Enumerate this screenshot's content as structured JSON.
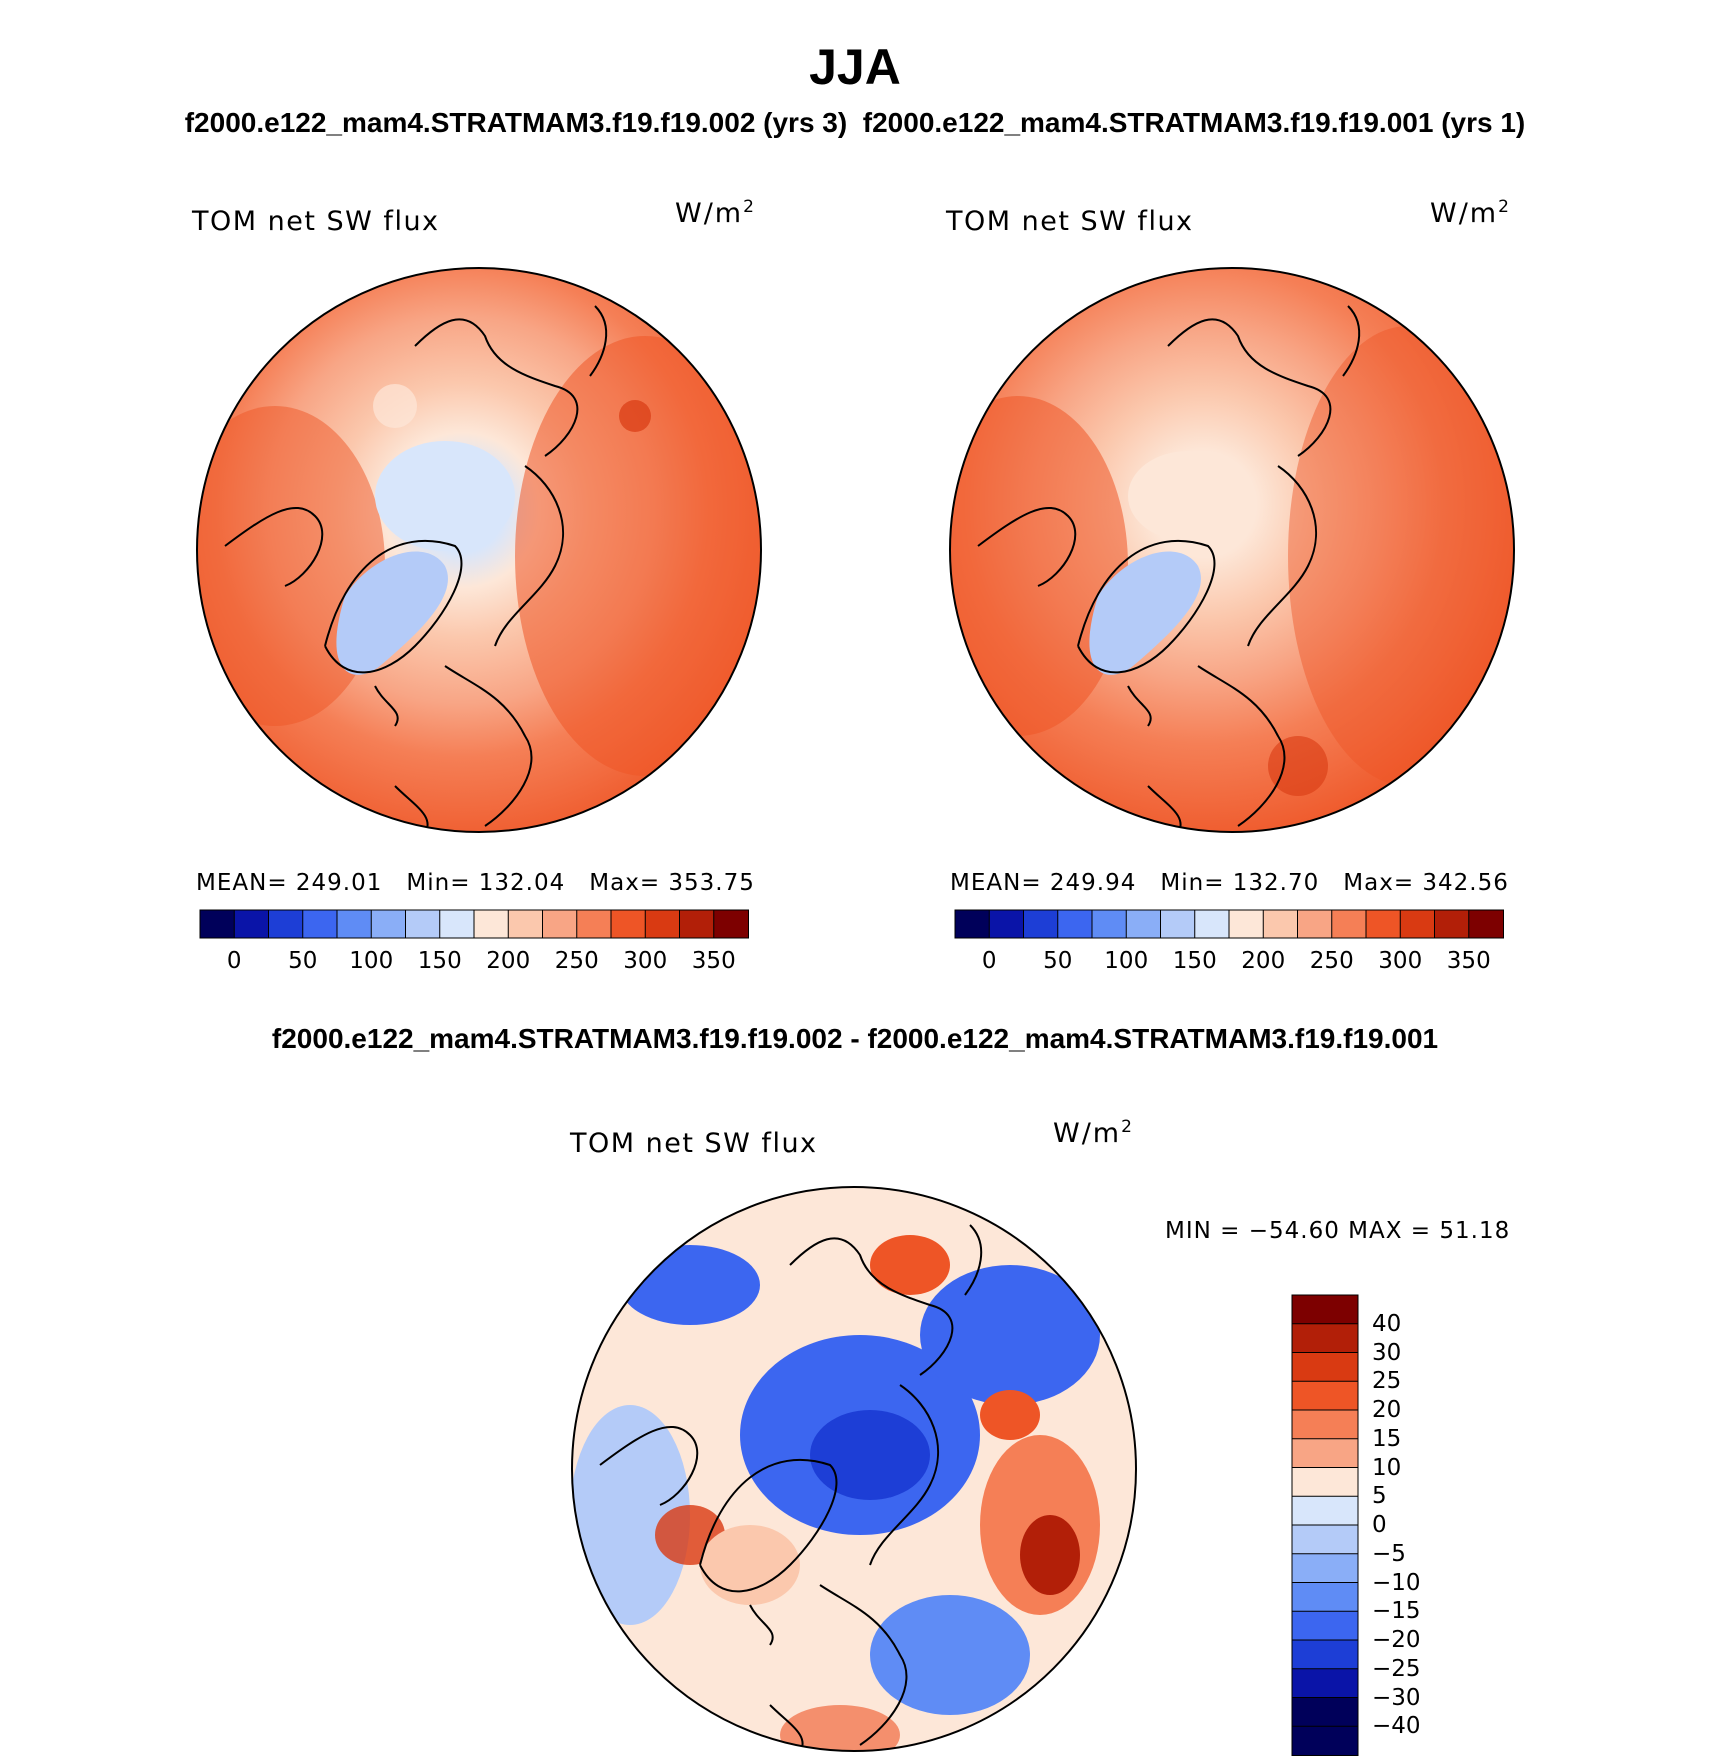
{
  "figure": {
    "season": "JJA",
    "top_subtitle_left": "f2000.e122_mam4.STRATMAM3.f19.f19.002 (yrs 3)",
    "top_subtitle_right": "f2000.e122_mam4.STRATMAM3.f19.f19.001 (yrs 1)",
    "diff_subtitle": "f2000.e122_mam4.STRATMAM3.f19.f19.002 - f2000.e122_mam4.STRATMAM3.f19.f19.001"
  },
  "panels": [
    {
      "variable": "TOM net SW flux",
      "units": "W/m",
      "units_sup": "2",
      "mean_label": "MEAN= 249.01",
      "min_label": "Min= 132.04",
      "max_label": "Max= 353.75"
    },
    {
      "variable": "TOM net SW flux",
      "units": "W/m",
      "units_sup": "2",
      "mean_label": "MEAN= 249.94",
      "min_label": "Min= 132.70",
      "max_label": "Max= 342.56"
    },
    {
      "variable": "TOM net SW flux",
      "units": "W/m",
      "units_sup": "2",
      "minmax_label": "MIN = −54.60 MAX =   51.18"
    }
  ],
  "abs_colorbar": {
    "colors": [
      "#00005a",
      "#0a14a8",
      "#1d3ed6",
      "#3c66f0",
      "#5f8cf5",
      "#8aaef7",
      "#b4cbf8",
      "#d8e6fb",
      "#fde7d8",
      "#fbc8ad",
      "#f8a585",
      "#f57f56",
      "#ee5526",
      "#d93a12",
      "#b21f08",
      "#7d0000"
    ],
    "tick_labels": [
      "0",
      "50",
      "100",
      "150",
      "200",
      "250",
      "300",
      "350"
    ]
  },
  "diff_colorbar": {
    "colors": [
      "#7d0000",
      "#b21f08",
      "#d93a12",
      "#ee5526",
      "#f57f56",
      "#f8a585",
      "#fde7d8",
      "#d8e6fb",
      "#b4cbf8",
      "#8aaef7",
      "#5f8cf5",
      "#3c66f0",
      "#1d3ed6",
      "#0a14a8",
      "#00005a"
    ],
    "tick_labels": [
      "40",
      "30",
      "25",
      "20",
      "15",
      "10",
      "5",
      "0",
      "−5",
      "−10",
      "−15",
      "−20",
      "−25",
      "−30",
      "−40"
    ]
  },
  "colors": {
    "background": "#ffffff",
    "coastline": "#000000"
  }
}
